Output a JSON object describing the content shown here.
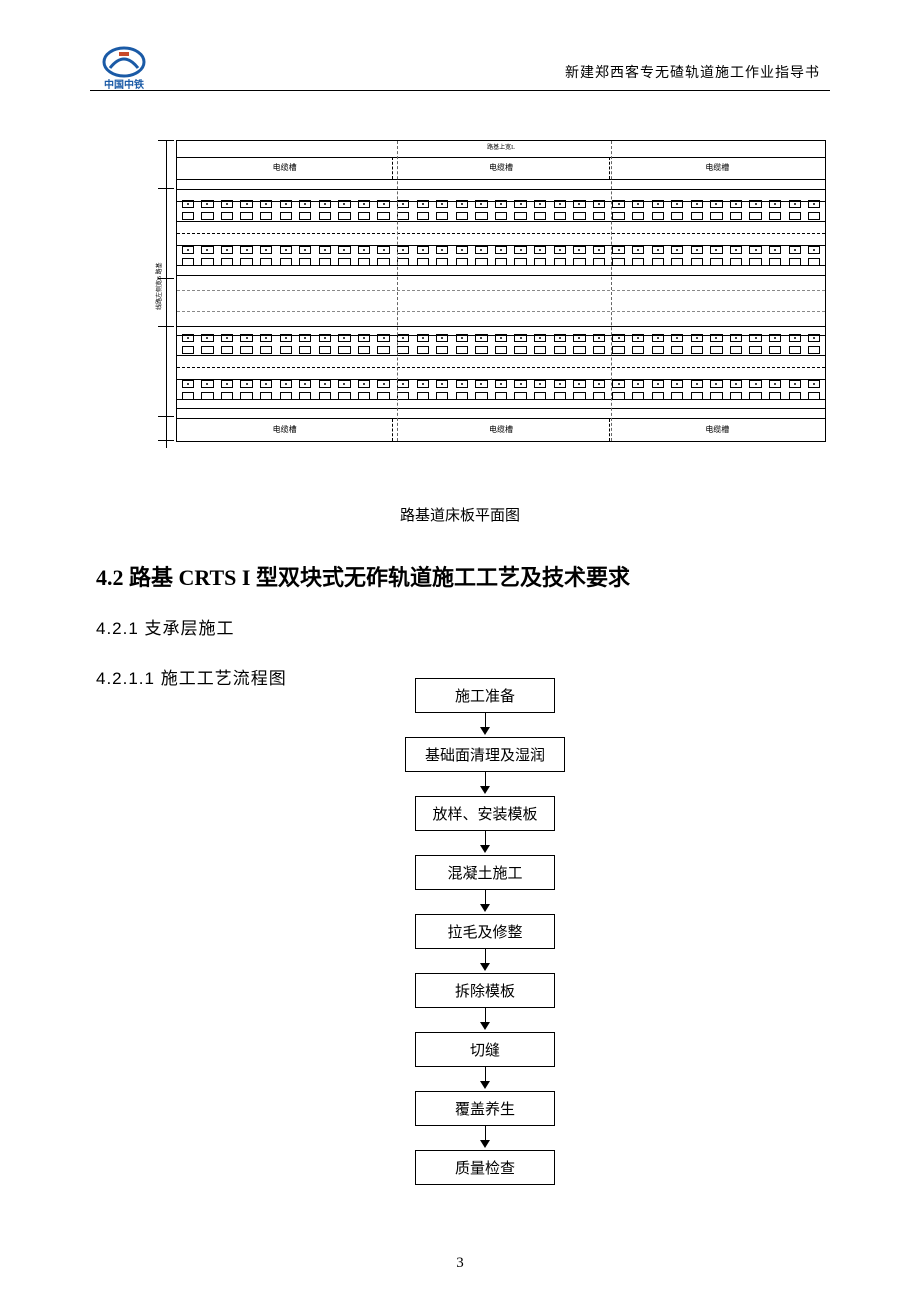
{
  "header": {
    "logo_text": "中国中铁",
    "logo_color_main": "#1a5aa6",
    "logo_color_accent": "#c94a2a",
    "doc_title": "新建郑西客专无碴轨道施工作业指导书"
  },
  "plan_view": {
    "caption": "路基道床板平面图",
    "top_title": "路基上宽L",
    "left_annotation": "线路左侧宽B 路基",
    "channel_label": "电缆槽",
    "channel_sections": 3,
    "sleepers_per_row": 33,
    "split_positions_pct": [
      34,
      67
    ],
    "rail_positions_pct": [
      14,
      36,
      62,
      84
    ],
    "dim_ticks_pct": [
      0,
      16,
      46,
      62,
      92,
      100
    ],
    "colors": {
      "line": "#000000",
      "dashed": "#666666",
      "background": "#ffffff"
    }
  },
  "headings": {
    "section": "4.2 路基 CRTS I 型双块式无砟轨道施工工艺及技术要求",
    "subsection": "4.2.1 支承层施工",
    "subsubsection": "4.2.1.1 施工工艺流程图"
  },
  "flowchart": {
    "type": "flowchart",
    "node_border_color": "#000000",
    "node_bg_color": "#ffffff",
    "node_font_size": 15,
    "arrow_color": "#000000",
    "nodes": [
      {
        "label": "施工准备",
        "width": "normal"
      },
      {
        "label": "基础面清理及湿润",
        "width": "wide"
      },
      {
        "label": "放样、安装模板",
        "width": "normal"
      },
      {
        "label": "混凝土施工",
        "width": "normal"
      },
      {
        "label": "拉毛及修整",
        "width": "normal"
      },
      {
        "label": "拆除模板",
        "width": "normal"
      },
      {
        "label": "切缝",
        "width": "normal"
      },
      {
        "label": "覆盖养生",
        "width": "normal"
      },
      {
        "label": "质量检查",
        "width": "normal"
      }
    ]
  },
  "page_number": "3"
}
